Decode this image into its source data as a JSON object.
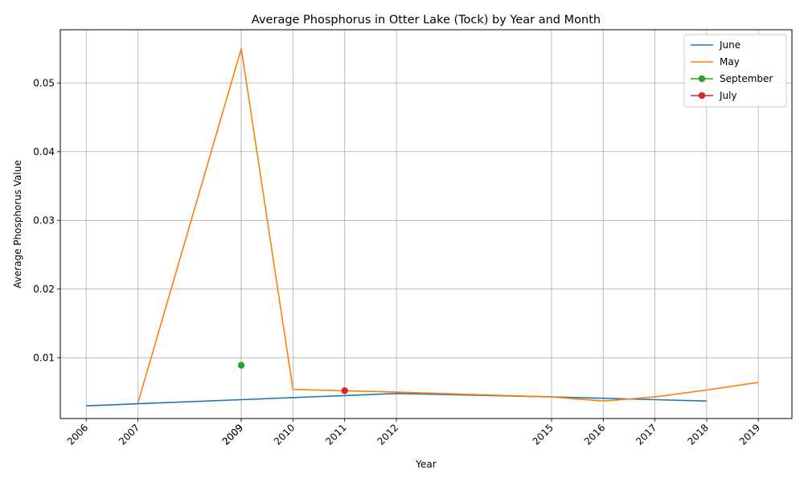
{
  "chart_data": {
    "type": "line",
    "title": "Average Phosphorus in Otter Lake (Tock) by Year and Month",
    "xlabel": "Year",
    "ylabel": "Average Phosphorus Value",
    "xlim": [
      2005.5,
      2019.65
    ],
    "ylim": [
      0.00115,
      0.05775
    ],
    "grid": true,
    "legend_position": "top-right",
    "x_ticks": [
      "2006",
      "2007",
      "2009",
      "2009",
      "2010",
      "2011",
      "2012",
      "2015",
      "2016",
      "2017",
      "2018",
      "2019"
    ],
    "y_ticks": [
      "0.01",
      "0.02",
      "0.03",
      "0.04",
      "0.05"
    ],
    "series": [
      {
        "name": "June",
        "color": "#1f77b4",
        "marker": "none",
        "points": [
          [
            2006,
            0.003
          ],
          [
            2007,
            0.0033
          ],
          [
            2009,
            0.0039
          ],
          [
            2010,
            0.0042
          ],
          [
            2011,
            0.0045
          ],
          [
            2012,
            0.0048
          ],
          [
            2015,
            0.0043
          ],
          [
            2016,
            0.0041
          ],
          [
            2017,
            0.0039
          ],
          [
            2018,
            0.0037
          ]
        ]
      },
      {
        "name": "May",
        "color": "#ff7f0e",
        "marker": "none",
        "points": [
          [
            2007,
            0.0034
          ],
          [
            2009,
            0.055
          ],
          [
            2010,
            0.0054
          ],
          [
            2011,
            0.0052
          ],
          [
            2012,
            0.005
          ],
          [
            2015,
            0.0043
          ],
          [
            2016,
            0.0037
          ],
          [
            2017,
            0.0043
          ],
          [
            2018,
            0.0053
          ],
          [
            2019,
            0.0064
          ]
        ]
      },
      {
        "name": "September",
        "color": "#2ca02c",
        "marker": "circle",
        "points": [
          [
            2009,
            0.0089
          ]
        ]
      },
      {
        "name": "July",
        "color": "#d62728",
        "marker": "circle",
        "points": [
          [
            2011,
            0.0052
          ]
        ]
      }
    ]
  }
}
